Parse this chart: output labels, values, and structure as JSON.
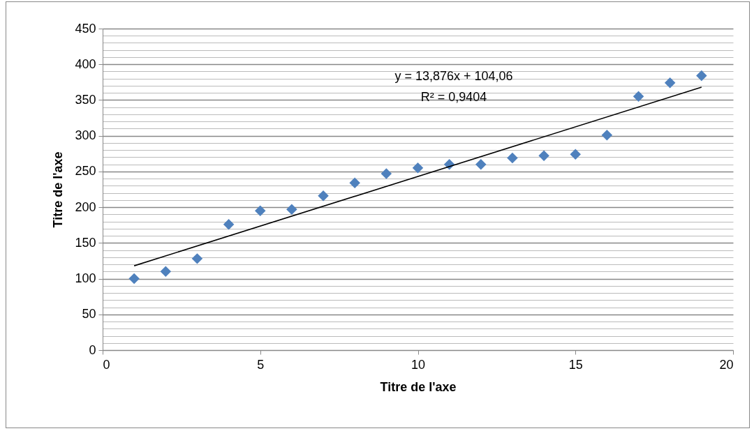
{
  "chart_data": {
    "type": "scatter",
    "xlabel": "Titre de l'axe",
    "ylabel": "Titre de l'axe",
    "xlim": [
      0,
      20
    ],
    "xticks": [
      0,
      5,
      10,
      15,
      20
    ],
    "ylim": [
      0,
      450
    ],
    "yticks": [
      0,
      {
        "value": 10,
        "label": null
      },
      {
        "value": 20,
        "label": null
      },
      {
        "value": 30,
        "label": null
      },
      {
        "value": 40,
        "label": null
      },
      50,
      {
        "value": 60,
        "label": null
      },
      {
        "value": 70,
        "label": null
      },
      {
        "value": 80,
        "label": null
      },
      {
        "value": 90,
        "label": null
      },
      100,
      {
        "value": 110,
        "label": null
      },
      {
        "value": 120,
        "label": null
      },
      {
        "value": 130,
        "label": null
      },
      {
        "value": 140,
        "label": null
      },
      150,
      {
        "value": 160,
        "label": null
      },
      {
        "value": 170,
        "label": null
      },
      {
        "value": 180,
        "label": null
      },
      {
        "value": 190,
        "label": null
      },
      200,
      {
        "value": 210,
        "label": null
      },
      {
        "value": 220,
        "label": null
      },
      {
        "value": 230,
        "label": null
      },
      {
        "value": 240,
        "label": null
      },
      250,
      {
        "value": 260,
        "label": null
      },
      {
        "value": 270,
        "label": null
      },
      {
        "value": 280,
        "label": null
      },
      {
        "value": 290,
        "label": null
      },
      300,
      {
        "value": 310,
        "label": null
      },
      {
        "value": 320,
        "label": null
      },
      {
        "value": 330,
        "label": null
      },
      {
        "value": 340,
        "label": null
      },
      350,
      {
        "value": 360,
        "label": null
      },
      {
        "value": 370,
        "label": null
      },
      {
        "value": 380,
        "label": null
      },
      {
        "value": 390,
        "label": null
      },
      400,
      {
        "value": 410,
        "label": null
      },
      {
        "value": 420,
        "label": null
      },
      {
        "value": 430,
        "label": null
      },
      {
        "value": 440,
        "label": null
      },
      450
    ],
    "grid": "y",
    "marker": "diamond",
    "series": [
      {
        "color": "#4f81bd",
        "x": [
          1,
          2,
          3,
          4,
          5,
          6,
          7,
          8,
          9,
          10,
          11,
          12,
          13,
          14,
          15,
          16,
          17,
          18,
          19
        ],
        "values": [
          100,
          110,
          128,
          176,
          195,
          197,
          216,
          234,
          247,
          255,
          260,
          260,
          269,
          272,
          274,
          301,
          355,
          374,
          384
        ]
      },
      {
        "type": "line",
        "color": "#000000",
        "marker": "none",
        "x": [
          1,
          19
        ],
        "values": [
          118,
          368
        ]
      }
    ],
    "annotations": [
      "y = 13,876x + 104,06",
      "R² = 0,9404"
    ]
  }
}
